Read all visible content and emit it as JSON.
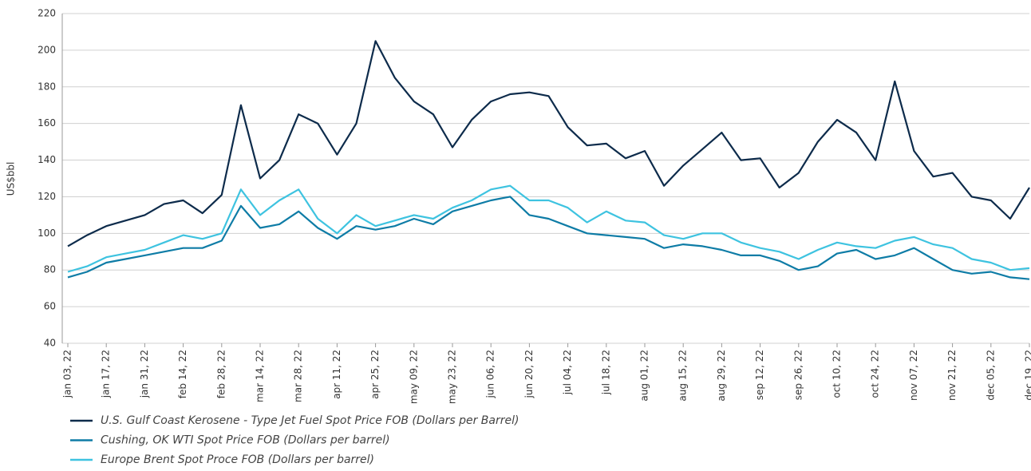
{
  "chart_data": {
    "type": "line",
    "y_label": "US$bbl",
    "categories": [
      "jan 03, 22",
      null,
      "jan 17, 22",
      null,
      "jan 31, 22",
      null,
      "feb 14, 22",
      null,
      "feb 28, 22",
      null,
      "mar 14, 22",
      null,
      "mar 28, 22",
      null,
      "apr 11, 22",
      null,
      "apr 25, 22",
      null,
      "may 09, 22",
      null,
      "may 23, 22",
      null,
      "jun 06, 22",
      null,
      "jun 20, 22",
      null,
      "jul 04, 22",
      null,
      "jul 18, 22",
      null,
      "aug 01, 22",
      null,
      "aug 15, 22",
      null,
      "aug 29, 22",
      null,
      "sep 12, 22",
      null,
      "sep 26, 22",
      null,
      "oct 10, 22",
      null,
      "oct 24, 22",
      null,
      "nov 07, 22",
      null,
      "nov 21, 22",
      null,
      "dec 05, 22",
      null,
      "dec 19, 22"
    ],
    "series": [
      {
        "name": "U.S. Gulf Coast Kerosene - Type Jet Fuel Spot Price FOB (Dollars per Barrel)",
        "color": "#0d2b4b",
        "values": [
          93,
          99,
          104,
          107,
          110,
          116,
          118,
          111,
          121,
          170,
          130,
          140,
          165,
          160,
          143,
          160,
          205,
          185,
          172,
          165,
          147,
          162,
          172,
          176,
          177,
          175,
          158,
          148,
          149,
          141,
          145,
          126,
          137,
          146,
          155,
          140,
          141,
          125,
          133,
          150,
          162,
          155,
          140,
          183,
          145,
          131,
          133,
          120,
          118,
          108,
          125
        ]
      },
      {
        "name": "Cushing, OK WTI Spot Price FOB (Dollars per barrel)",
        "color": "#0e7ca6",
        "values": [
          76,
          79,
          84,
          86,
          88,
          90,
          92,
          92,
          96,
          115,
          103,
          105,
          112,
          103,
          97,
          104,
          102,
          104,
          108,
          105,
          112,
          115,
          118,
          120,
          110,
          108,
          104,
          100,
          99,
          98,
          97,
          92,
          94,
          93,
          91,
          88,
          88,
          85,
          80,
          82,
          89,
          91,
          86,
          88,
          92,
          86,
          80,
          78,
          79,
          76,
          75
        ]
      },
      {
        "name": "Europe Brent Spot Proce FOB (Dollars per barrel)",
        "color": "#3ec3e0",
        "values": [
          79,
          82,
          87,
          89,
          91,
          95,
          99,
          97,
          100,
          124,
          110,
          118,
          124,
          108,
          100,
          110,
          104,
          107,
          110,
          108,
          114,
          118,
          124,
          126,
          118,
          118,
          114,
          106,
          112,
          107,
          106,
          99,
          97,
          100,
          100,
          95,
          92,
          90,
          86,
          91,
          95,
          93,
          92,
          96,
          98,
          94,
          92,
          86,
          84,
          80,
          81
        ]
      }
    ],
    "ylim": [
      40,
      220
    ],
    "yticks": [
      40,
      60,
      80,
      100,
      120,
      140,
      160,
      180,
      200,
      220
    ],
    "grid": true
  }
}
